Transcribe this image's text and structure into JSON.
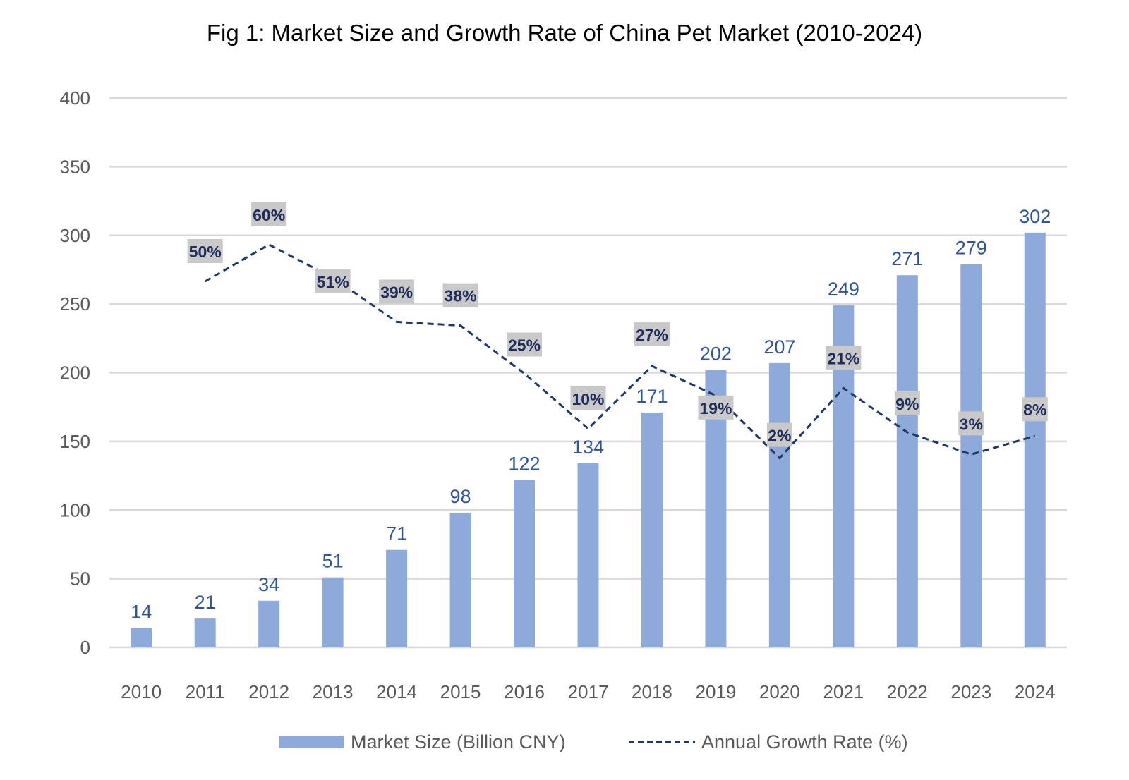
{
  "chart_data": {
    "type": "bar",
    "title": "Fig 1: Market Size and Growth Rate of China Pet Market (2010-2024)",
    "xlabel": "",
    "ylabel": "",
    "ylim": [
      0,
      400
    ],
    "yticks": [
      0,
      50,
      100,
      150,
      200,
      250,
      300,
      350,
      400
    ],
    "grid": true,
    "legend_position": "bottom",
    "categories": [
      "2010",
      "2011",
      "2012",
      "2013",
      "2014",
      "2015",
      "2016",
      "2017",
      "2018",
      "2019",
      "2020",
      "2021",
      "2022",
      "2023",
      "2024"
    ],
    "series": [
      {
        "name": "Market Size (Billion CNY)",
        "type": "bar",
        "axis": "primary",
        "color": "#8eaadb",
        "values": [
          14,
          21,
          34,
          51,
          71,
          98,
          122,
          134,
          171,
          202,
          207,
          249,
          271,
          279,
          302
        ],
        "labels": [
          "14",
          "21",
          "34",
          "51",
          "71",
          "98",
          "122",
          "134",
          "171",
          "202",
          "207",
          "249",
          "271",
          "279",
          "302"
        ]
      },
      {
        "name": "Annual Growth Rate (%)",
        "type": "line",
        "style": "dashed",
        "axis": "secondary (hidden)",
        "color": "#1f3864",
        "values": [
          null,
          50,
          60,
          51,
          39,
          38,
          25,
          10,
          27,
          19,
          2,
          21,
          9,
          3,
          8
        ],
        "labels": [
          null,
          "50%",
          "60%",
          "51%",
          "39%",
          "38%",
          "25%",
          "10%",
          "27%",
          "19%",
          "2%",
          "21%",
          "9%",
          "3%",
          "8%"
        ]
      }
    ]
  }
}
